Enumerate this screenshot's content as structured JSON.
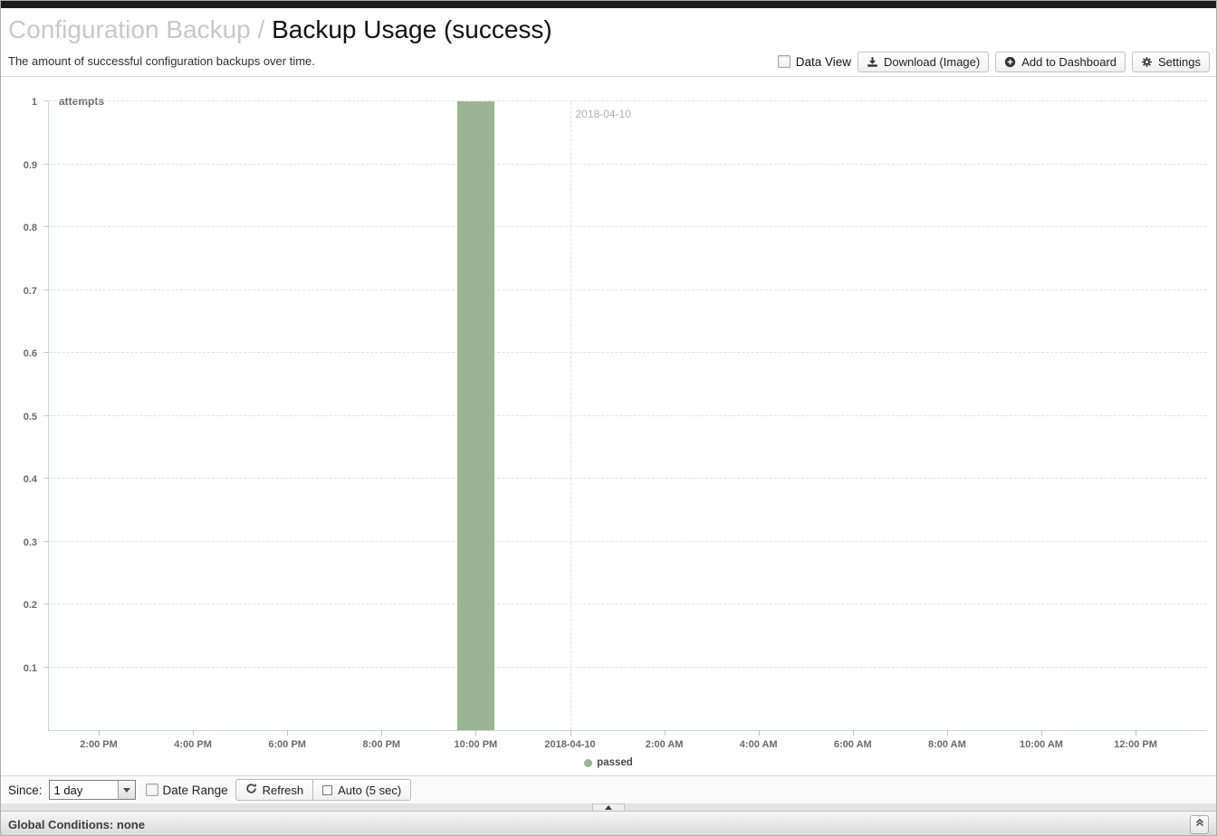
{
  "header": {
    "breadcrumb": "Configuration Backup",
    "separator": "/",
    "title": "Backup Usage (success)",
    "subtitle": "The amount of successful configuration backups over time.",
    "data_view": {
      "label": "Data View",
      "checked": false
    },
    "buttons": {
      "download": "Download (Image)",
      "add_to_dashboard": "Add to Dashboard",
      "settings": "Settings"
    }
  },
  "chart_data": {
    "type": "bar",
    "title": "",
    "ylabel": "attempts",
    "xlabel": "",
    "ylim": [
      0,
      1
    ],
    "grid": true,
    "y_ticks": [
      0.1,
      0.2,
      0.3,
      0.4,
      0.5,
      0.6,
      0.7,
      0.8,
      0.9,
      1
    ],
    "x_ticks": [
      "2:00 PM",
      "4:00 PM",
      "6:00 PM",
      "8:00 PM",
      "10:00 PM",
      "2018-04-10",
      "2:00 AM",
      "4:00 AM",
      "6:00 AM",
      "8:00 AM",
      "10:00 AM",
      "12:00 PM"
    ],
    "date_boundary_tick": "2018-04-10",
    "annotation": "2018-04-10",
    "legend_position": "bottom-center",
    "series": [
      {
        "name": "passed",
        "color": "#9ab592",
        "points": [
          {
            "x": "10:00 PM",
            "y": 1
          }
        ]
      }
    ]
  },
  "controls": {
    "since_label": "Since:",
    "since_value": "1 day",
    "date_range": {
      "label": "Date Range",
      "checked": false
    },
    "refresh_label": "Refresh",
    "auto_label": "Auto (5 sec)",
    "auto_checked": false
  },
  "status_bar": {
    "text": "Global Conditions: none"
  }
}
